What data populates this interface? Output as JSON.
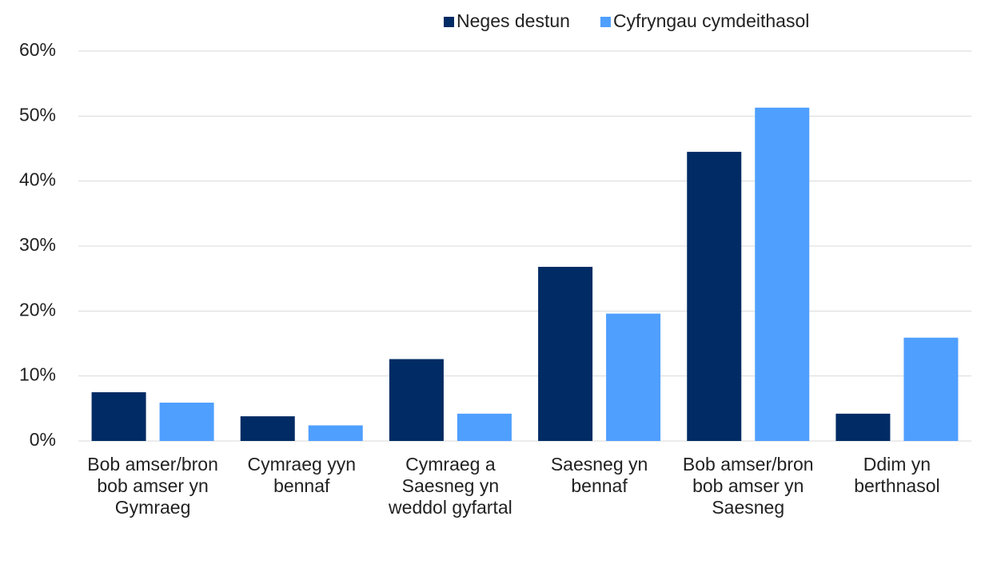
{
  "chart_data": {
    "type": "bar",
    "categories": [
      "Bob amser/bron bob amser yn Gymraeg",
      "Cymraeg yyn bennaf",
      "Cymraeg a Saesneg yn weddol gyfartal",
      "Saesneg yn bennaf",
      "Bob amser/bron bob amser yn Saesneg",
      "Ddim yn berthnasol"
    ],
    "series": [
      {
        "name": "Neges destun",
        "color": "#002b64",
        "values": [
          7.5,
          3.8,
          12.6,
          26.8,
          44.5,
          4.2
        ]
      },
      {
        "name": "Cyfryngau cymdeithasol",
        "color": "#4f9fff",
        "values": [
          5.9,
          2.4,
          4.2,
          19.6,
          51.3,
          15.9
        ]
      }
    ],
    "ylim": [
      0,
      60
    ],
    "yticks": [
      {
        "value": 0,
        "label": "0%"
      },
      {
        "value": 10,
        "label": "10%"
      },
      {
        "value": 20,
        "label": "20%"
      },
      {
        "value": 30,
        "label": "30%"
      },
      {
        "value": 40,
        "label": "40%"
      },
      {
        "value": 50,
        "label": "50%"
      },
      {
        "value": 60,
        "label": "60%"
      }
    ],
    "grid": true,
    "legend": "top"
  }
}
